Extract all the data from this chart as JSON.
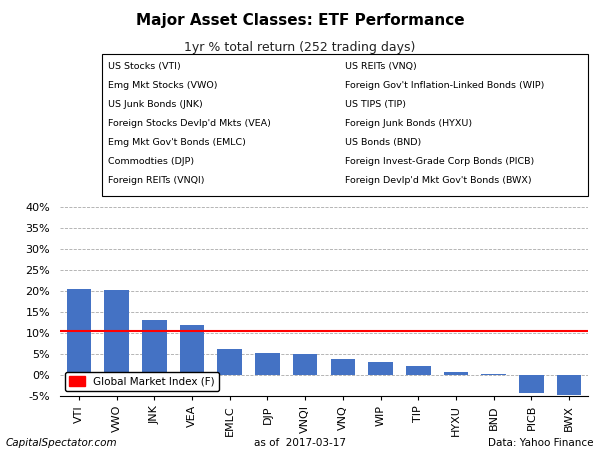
{
  "title": "Major Asset Classes: ETF Performance",
  "subtitle": "1yr % total return (252 trading days)",
  "categories": [
    "VTI",
    "VWO",
    "JNK",
    "VEA",
    "EMLC",
    "DJP",
    "VNQI",
    "VNQ",
    "WIP",
    "TIP",
    "HYXU",
    "BND",
    "PICB",
    "BWX"
  ],
  "values": [
    20.5,
    20.2,
    13.0,
    12.0,
    6.3,
    5.2,
    5.0,
    3.8,
    3.2,
    2.1,
    0.8,
    0.3,
    -4.2,
    -4.8
  ],
  "bar_color": "#4472C4",
  "hline_value": 10.5,
  "hline_color": "#FF0000",
  "ylim": [
    -5,
    40
  ],
  "yticks": [
    -5,
    0,
    5,
    10,
    15,
    20,
    25,
    30,
    35,
    40
  ],
  "ytick_labels": [
    "-5%",
    "0%",
    "5%",
    "10%",
    "15%",
    "20%",
    "25%",
    "30%",
    "35%",
    "40%"
  ],
  "legend_left": [
    "US Stocks (VTI)",
    "Emg Mkt Stocks (VWO)",
    "US Junk Bonds (JNK)",
    "Foreign Stocks Devlp'd Mkts (VEA)",
    "Emg Mkt Gov't Bonds (EMLC)",
    "Commodties (DJP)",
    "Foreign REITs (VNQI)"
  ],
  "legend_right": [
    "US REITs (VNQ)",
    "Foreign Gov't Inflation-Linked Bonds (WIP)",
    "US TIPS (TIP)",
    "Foreign Junk Bonds (HYXU)",
    "US Bonds (BND)",
    "Foreign Invest-Grade Corp Bonds (PICB)",
    "Foreign Devlp'd Mkt Gov't Bonds (BWX)"
  ],
  "footer_left": "CapitalSpectator.com",
  "footer_center": "as of  2017-03-17",
  "footer_right": "Data: Yahoo Finance",
  "global_market_label": "Global Market Index (F)",
  "global_market_color": "#FF0000",
  "background_color": "#FFFFFF",
  "grid_color": "#AAAAAA"
}
